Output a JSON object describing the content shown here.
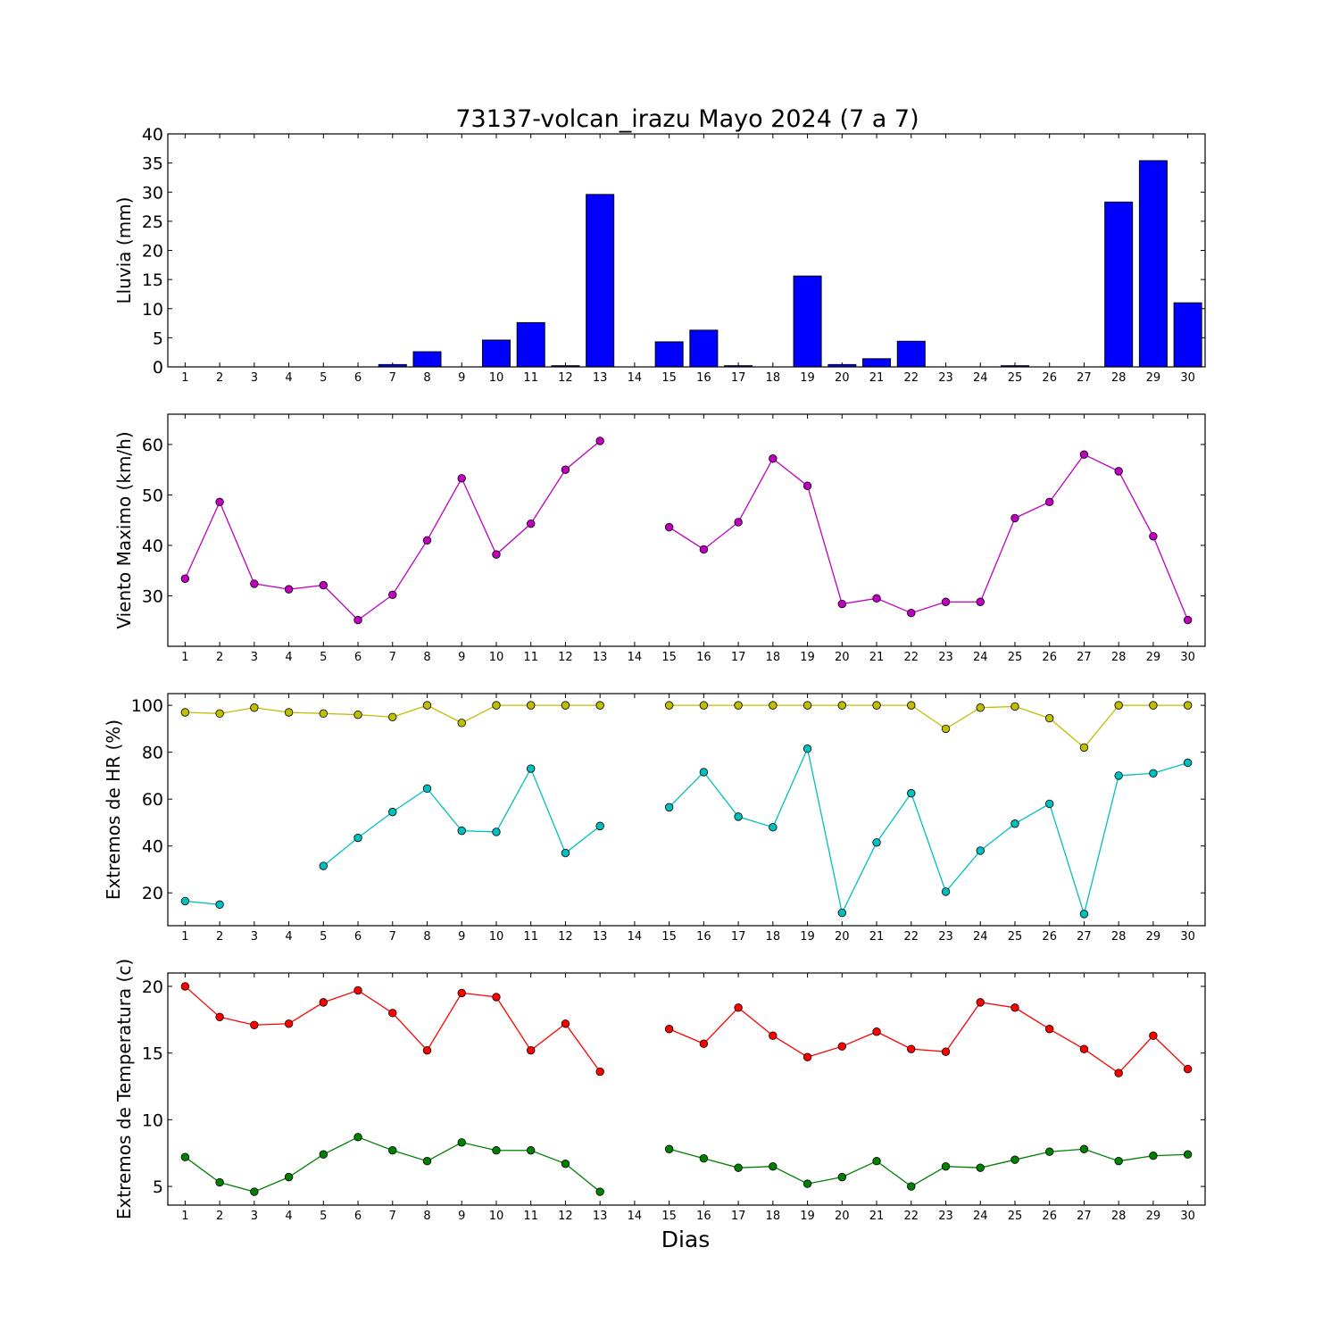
{
  "title": "73137-volcan_irazu Mayo 2024  (7 a 7)",
  "xlabel": "Dias",
  "colors": {
    "lluvia": "#0000ff",
    "viento": "#bf00bf",
    "hr_max": "#bfbf00",
    "hr_min": "#00bfbf",
    "temp_max": "#ff0000",
    "temp_min": "#008000"
  },
  "chart_data": [
    {
      "type": "bar",
      "ylabel": "Lluvia (mm)",
      "ylim": [
        0,
        40
      ],
      "yticks": [
        0,
        5,
        10,
        15,
        20,
        25,
        30,
        35,
        40
      ],
      "x": [
        1,
        2,
        3,
        4,
        5,
        6,
        7,
        8,
        9,
        10,
        11,
        12,
        13,
        14,
        15,
        16,
        17,
        18,
        19,
        20,
        21,
        22,
        23,
        24,
        25,
        26,
        27,
        28,
        29,
        30
      ],
      "series": [
        {
          "color_key": "lluvia",
          "values": [
            0,
            0,
            0,
            0,
            0,
            0,
            0.4,
            2.6,
            0,
            4.6,
            7.6,
            0.2,
            29.6,
            null,
            4.3,
            6.3,
            0.2,
            0,
            15.6,
            0.4,
            1.4,
            4.4,
            0,
            0,
            0.2,
            0,
            0,
            28.3,
            35.4,
            11.0
          ]
        }
      ]
    },
    {
      "type": "line",
      "ylabel": "Viento Maximo (km/h)",
      "ylim": [
        20,
        66
      ],
      "yticks": [
        30,
        40,
        50,
        60
      ],
      "x": [
        1,
        2,
        3,
        4,
        5,
        6,
        7,
        8,
        9,
        10,
        11,
        12,
        13,
        14,
        15,
        16,
        17,
        18,
        19,
        20,
        21,
        22,
        23,
        24,
        25,
        26,
        27,
        28,
        29,
        30
      ],
      "series": [
        {
          "color_key": "viento",
          "values": [
            33.4,
            48.6,
            32.4,
            31.3,
            32.1,
            25.2,
            30.2,
            41.0,
            53.3,
            38.2,
            44.3,
            55.0,
            60.7,
            null,
            43.6,
            39.2,
            44.6,
            57.2,
            51.8,
            28.4,
            29.5,
            26.6,
            28.8,
            28.8,
            45.4,
            48.6,
            58.0,
            54.7,
            41.8,
            25.2
          ]
        }
      ]
    },
    {
      "type": "line",
      "ylabel": "Extremos de HR (%)",
      "ylim": [
        6,
        105
      ],
      "yticks": [
        20,
        40,
        60,
        80,
        100
      ],
      "x": [
        1,
        2,
        3,
        4,
        5,
        6,
        7,
        8,
        9,
        10,
        11,
        12,
        13,
        14,
        15,
        16,
        17,
        18,
        19,
        20,
        21,
        22,
        23,
        24,
        25,
        26,
        27,
        28,
        29,
        30
      ],
      "series": [
        {
          "color_key": "hr_max",
          "values": [
            97,
            96.5,
            99,
            97,
            96.5,
            96,
            95,
            100,
            92.5,
            100,
            100,
            100,
            100,
            null,
            100,
            100,
            100,
            100,
            100,
            100,
            100,
            100,
            90,
            99,
            99.5,
            94.5,
            82,
            100,
            100,
            100
          ]
        },
        {
          "color_key": "hr_min",
          "values": [
            16.5,
            15,
            null,
            null,
            31.5,
            43.5,
            54.5,
            64.5,
            46.5,
            46,
            73,
            37,
            48.5,
            null,
            56.5,
            71.5,
            52.5,
            48,
            81.5,
            11.5,
            41.5,
            62.5,
            20.5,
            38,
            49.5,
            58,
            11,
            70,
            71,
            75.5
          ]
        }
      ]
    },
    {
      "type": "line",
      "ylabel": "Extremos de Temperatura (c)",
      "ylim": [
        3.6,
        21
      ],
      "yticks": [
        5,
        10,
        15,
        20
      ],
      "x": [
        1,
        2,
        3,
        4,
        5,
        6,
        7,
        8,
        9,
        10,
        11,
        12,
        13,
        14,
        15,
        16,
        17,
        18,
        19,
        20,
        21,
        22,
        23,
        24,
        25,
        26,
        27,
        28,
        29,
        30
      ],
      "series": [
        {
          "color_key": "temp_max",
          "values": [
            20.0,
            17.7,
            17.1,
            17.2,
            18.8,
            19.7,
            18.0,
            15.2,
            19.5,
            19.2,
            15.2,
            17.2,
            13.6,
            null,
            16.8,
            15.7,
            18.4,
            16.3,
            14.7,
            15.5,
            16.6,
            15.3,
            15.1,
            18.8,
            18.4,
            16.8,
            15.3,
            13.5,
            16.3,
            13.8
          ]
        },
        {
          "color_key": "temp_min",
          "values": [
            7.2,
            5.3,
            4.6,
            5.7,
            7.4,
            8.7,
            7.7,
            6.9,
            8.3,
            7.7,
            7.7,
            6.7,
            4.6,
            null,
            7.8,
            7.1,
            6.4,
            6.5,
            5.2,
            5.7,
            6.9,
            5.0,
            6.5,
            6.4,
            7.0,
            7.6,
            7.8,
            6.9,
            7.3,
            7.4
          ]
        }
      ]
    }
  ]
}
